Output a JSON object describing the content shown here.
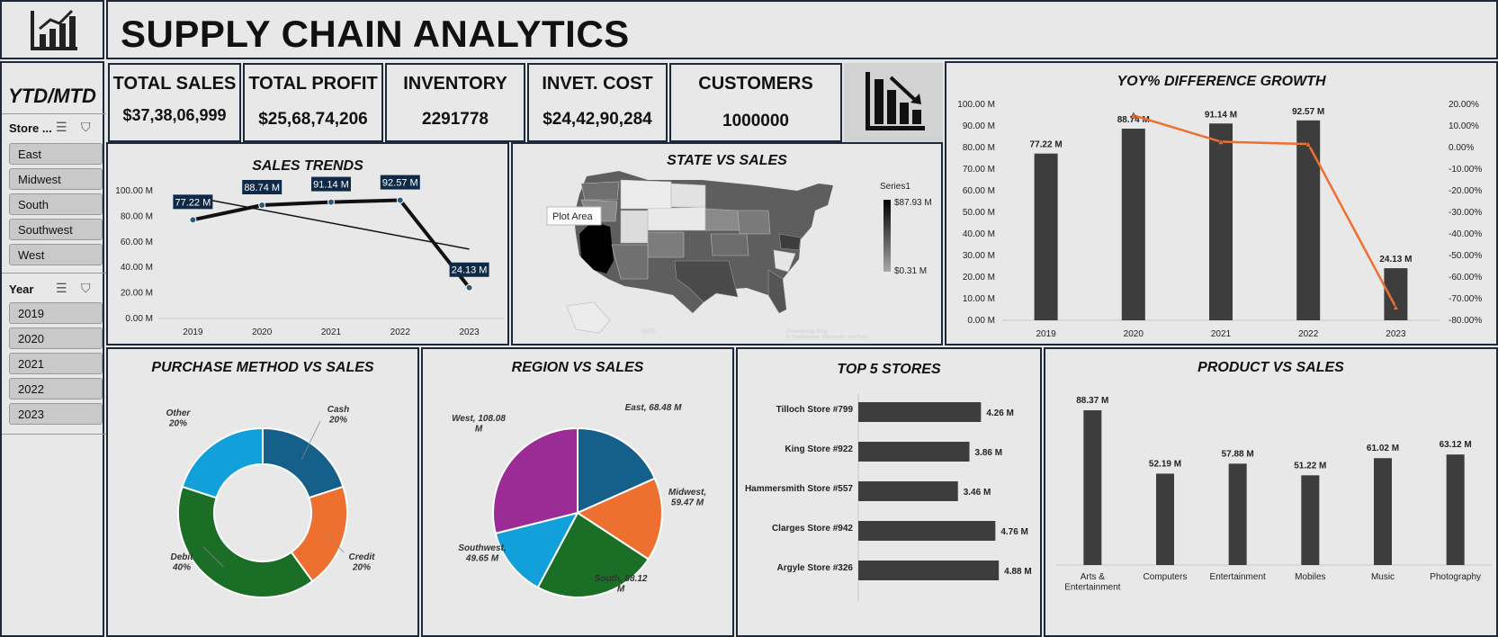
{
  "header": {
    "title": "SUPPLY CHAIN ANALYTICS",
    "logo_icon": "bar-chart-growth-icon"
  },
  "sidebar": {
    "title": "YTD/MTD",
    "store_slicer": {
      "label": "Store ...",
      "items": [
        "East",
        "Midwest",
        "South",
        "Southwest",
        "West"
      ]
    },
    "year_slicer": {
      "label": "Year",
      "items": [
        "2019",
        "2020",
        "2021",
        "2022",
        "2023"
      ]
    }
  },
  "kpis": [
    {
      "label": "TOTAL SALES",
      "value": "$37,38,06,999"
    },
    {
      "label": "TOTAL PROFIT",
      "value": "$25,68,74,206"
    },
    {
      "label": "INVENTORY",
      "value": "2291778"
    },
    {
      "label": "INVET. COST",
      "value": "$24,42,90,284"
    },
    {
      "label": "CUSTOMERS",
      "value": "1000000"
    }
  ],
  "kpi_icon": "bar-chart-decline-icon",
  "sales_trends": {
    "title": "SALES TRENDS"
  },
  "state_sales": {
    "title": "STATE VS SALES",
    "legend_title": "Series1",
    "legend_max": "$87.93 M",
    "legend_min": "$0.31 M",
    "tooltip": "Plot Area",
    "attribution": "Powered by Bing\n© GeoNames, Microsoft, TomTom"
  },
  "yoy": {
    "title": "YOY% DIFFERENCE GROWTH"
  },
  "purchase": {
    "title": "PURCHASE METHOD VS SALES"
  },
  "region": {
    "title": "REGION VS SALES"
  },
  "top5": {
    "title": "TOP 5 STORES"
  },
  "product": {
    "title": "PRODUCT VS SALES"
  },
  "colors": {
    "bar": "#3d3d3d",
    "navy": "#0f2a47",
    "orange": "#ed7031",
    "blue": "#155f8b",
    "green": "#1b6e26",
    "sky": "#12a0da",
    "purple": "#9b2c95"
  },
  "chart_data": [
    {
      "id": "sales_trends",
      "type": "line",
      "x": [
        "2019",
        "2020",
        "2021",
        "2022",
        "2023"
      ],
      "values": [
        77.22,
        88.74,
        91.14,
        92.57,
        24.13
      ],
      "data_labels": [
        "77.22 M",
        "88.74 M",
        "91.14 M",
        "92.57 M",
        "24.13 M"
      ],
      "yticks": [
        "0.00 M",
        "20.00 M",
        "40.00 M",
        "60.00 M",
        "80.00 M",
        "100.00 M"
      ],
      "ylim": [
        0,
        100
      ],
      "trendline": true
    },
    {
      "id": "yoy",
      "type": "bar",
      "x": [
        "2019",
        "2020",
        "2021",
        "2022",
        "2023"
      ],
      "values": [
        77.22,
        88.74,
        91.14,
        92.57,
        24.13
      ],
      "data_labels": [
        "77.22 M",
        "88.74 M",
        "91.14 M",
        "92.57 M",
        "24.13 M"
      ],
      "yticks": [
        "0.00 M",
        "10.00 M",
        "20.00 M",
        "30.00 M",
        "40.00 M",
        "50.00 M",
        "60.00 M",
        "70.00 M",
        "80.00 M",
        "90.00 M",
        "100.00 M"
      ],
      "ylim": [
        0,
        100
      ],
      "secondary": {
        "type": "line",
        "x": [
          "2020",
          "2021",
          "2022",
          "2023"
        ],
        "values": [
          14.9,
          2.7,
          1.6,
          -73.9
        ],
        "ylim": [
          -80,
          20
        ],
        "yticks": [
          "-80.00%",
          "-70.00%",
          "-60.00%",
          "-50.00%",
          "-40.00%",
          "-30.00%",
          "-20.00%",
          "-10.00%",
          "0.00%",
          "10.00%",
          "20.00%"
        ]
      }
    },
    {
      "id": "purchase",
      "type": "pie",
      "donut": true,
      "slices": [
        {
          "name": "Cash",
          "value": 20,
          "label": "Cash\n20%"
        },
        {
          "name": "Credit",
          "value": 20,
          "label": "Credit\n20%"
        },
        {
          "name": "Debit",
          "value": 40,
          "label": "Debit\n40%"
        },
        {
          "name": "Other",
          "value": 20,
          "label": "Other\n20%"
        }
      ]
    },
    {
      "id": "region",
      "type": "pie",
      "slices": [
        {
          "name": "East",
          "value": 68.48,
          "label": "East, 68.48 M"
        },
        {
          "name": "Midwest",
          "value": 59.47,
          "label": "Midwest,\n59.47 M"
        },
        {
          "name": "South",
          "value": 88.12,
          "label": "South, 88.12\nM"
        },
        {
          "name": "Southwest",
          "value": 49.65,
          "label": "Southwest,\n49.65 M"
        },
        {
          "name": "West",
          "value": 108.08,
          "label": "West, 108.08\nM"
        }
      ]
    },
    {
      "id": "top5",
      "type": "bar",
      "orientation": "horizontal",
      "categories": [
        "Tilloch Store #799",
        "King Store #922",
        "Hammersmith Store #557",
        "Clarges Store #942",
        "Argyle Store #326"
      ],
      "values": [
        4.26,
        3.86,
        3.46,
        4.76,
        4.88
      ],
      "data_labels": [
        "4.26 M",
        "3.86 M",
        "3.46 M",
        "4.76 M",
        "4.88 M"
      ]
    },
    {
      "id": "product",
      "type": "bar",
      "categories": [
        "Arts &\nEntertainment",
        "Computers",
        "Entertainment",
        "Mobiles",
        "Music",
        "Photography"
      ],
      "values": [
        88.37,
        52.19,
        57.88,
        51.22,
        61.02,
        63.12
      ],
      "data_labels": [
        "88.37 M",
        "52.19 M",
        "57.88 M",
        "51.22 M",
        "61.02 M",
        "63.12 M"
      ]
    }
  ]
}
